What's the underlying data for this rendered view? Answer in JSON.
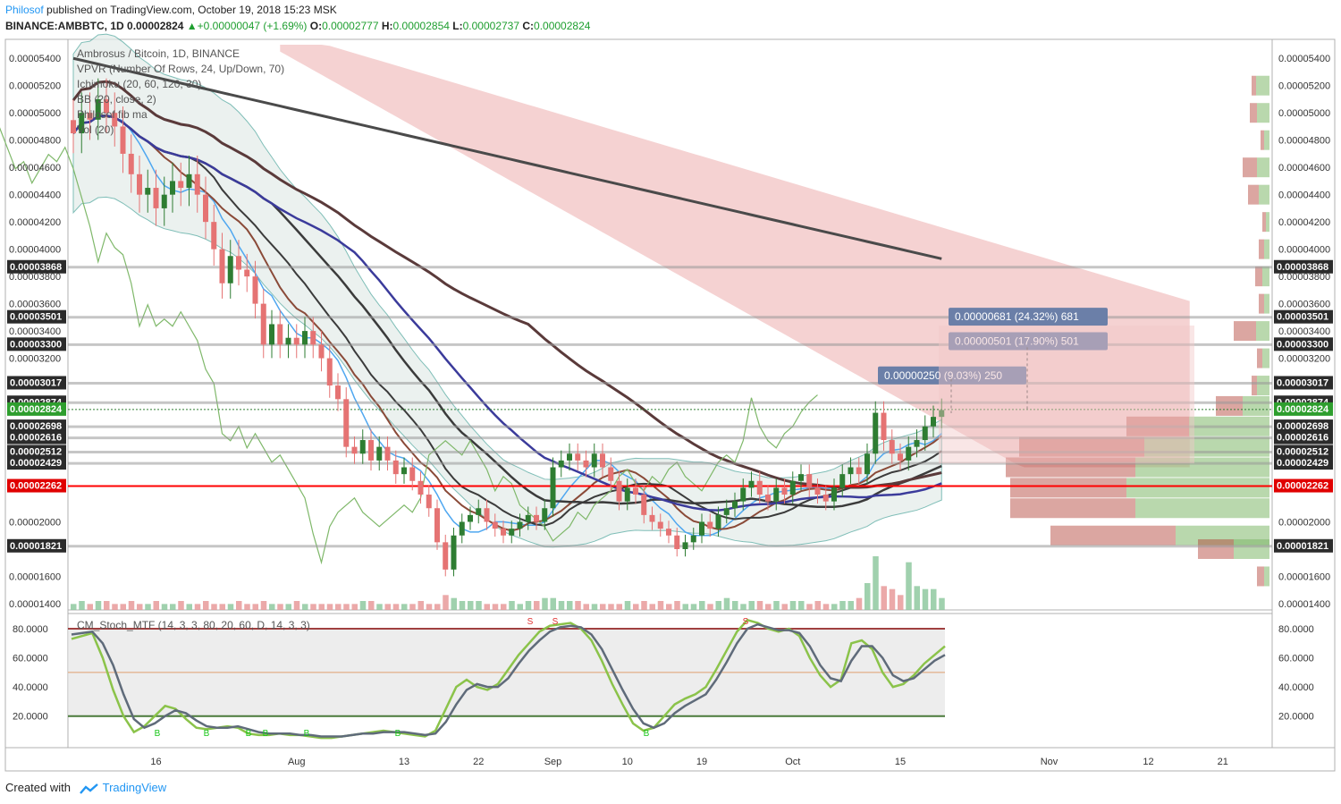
{
  "header": {
    "author": "Philosof",
    "published_text": "published on TradingView.com, October 19, 2018 15:23 MSK",
    "symbol": "BINANCE:AMBBTC, 1D",
    "last": "0.00002824",
    "change": "+0.00000047 (+1.69%)",
    "open_label": "O:",
    "open": "0.00002777",
    "high_label": "H:",
    "high": "0.00002854",
    "low_label": "L:",
    "low": "0.00002737",
    "close_label": "C:",
    "close": "0.00002824"
  },
  "legend": [
    "Ambrosus / Bitcoin, 1D, BINANCE",
    "VPVR (Number Of Rows, 24, Up/Down, 70)",
    "Ichimoku (20, 60, 120, 30)",
    "BB (20, close, 2)",
    "Philosof fib ma",
    "Vol (20)"
  ],
  "stoch_legend": "CM_Stoch_MTF (14, 3, 3, 80, 20, 60, D, 14, 3, 3)",
  "footer": {
    "created_with": "Created with",
    "brand": "TradingView"
  },
  "colors": {
    "up": "#2e7d32",
    "down": "#e57373",
    "cloud_bear": "#f2c7c7",
    "level": "#999999",
    "red_level": "#ff0000",
    "label_box": "#6b7fa8",
    "stoch_fast": "#8bc34a",
    "stoch_slow": "#5f6b7a"
  },
  "chart_data": [
    {
      "type": "line",
      "title": "Ambrosus / Bitcoin, 1D, BINANCE",
      "x_ticks": [
        "16",
        "Aug",
        "13",
        "22",
        "Sep",
        "10",
        "19",
        "Oct",
        "15",
        "Nov",
        "12",
        "21"
      ],
      "y_ticks": [
        "0.00005400",
        "0.00005200",
        "0.00005000",
        "0.00004800",
        "0.00004600",
        "0.00004400",
        "0.00004200",
        "0.00004000",
        "0.00003800",
        "0.00003600",
        "0.00003400",
        "0.00003200",
        "0.00002000",
        "0.00001600",
        "0.00001400"
      ],
      "ylim": [
        1.38e-05,
        5.5e-05
      ],
      "horizontal_levels": [
        {
          "label": "0.00003868",
          "value": 3.868e-05
        },
        {
          "label": "0.00003501",
          "value": 3.501e-05
        },
        {
          "label": "0.00003300",
          "value": 3.3e-05
        },
        {
          "label": "0.00003017",
          "value": 3.017e-05
        },
        {
          "label": "0.00002874",
          "value": 2.874e-05
        },
        {
          "label": "0.00002698",
          "value": 2.698e-05
        },
        {
          "label": "0.00002616",
          "value": 2.616e-05
        },
        {
          "label": "0.00002512",
          "value": 2.512e-05
        },
        {
          "label": "0.00002429",
          "value": 2.429e-05
        },
        {
          "label": "0.00002262",
          "value": 2.262e-05,
          "highlight": true
        },
        {
          "label": "0.00001821",
          "value": 1.821e-05
        }
      ],
      "current_price": {
        "label": "0.00002824",
        "value": 2.824e-05
      },
      "targets": [
        {
          "text": "0.00000681 (24.32%) 681",
          "value": 3.505e-05
        },
        {
          "text": "0.00000501 (17.90%) 501",
          "value": 3.325e-05
        },
        {
          "text": "0.00000250 (9.03%) 250",
          "value": 3.074e-05
        }
      ],
      "close_series": [
        4.85e-05,
        5e-05,
        4.95e-05,
        5.1e-05,
        5e-05,
        4.9e-05,
        4.7e-05,
        4.55e-05,
        4.4e-05,
        4.45e-05,
        4.3e-05,
        4.4e-05,
        4.5e-05,
        4.45e-05,
        4.55e-05,
        4.4e-05,
        4.2e-05,
        4e-05,
        3.75e-05,
        3.95e-05,
        3.85e-05,
        3.8e-05,
        3.6e-05,
        3.3e-05,
        3.45e-05,
        3.3e-05,
        3.35e-05,
        3.3e-05,
        3.4e-05,
        3.3e-05,
        3.2e-05,
        3e-05,
        2.9e-05,
        2.55e-05,
        2.5e-05,
        2.6e-05,
        2.45e-05,
        2.55e-05,
        2.45e-05,
        2.35e-05,
        2.4e-05,
        2.3e-05,
        2.2e-05,
        2.1e-05,
        1.85e-05,
        1.65e-05,
        1.9e-05,
        2e-05,
        2.05e-05,
        2.1e-05,
        2e-05,
        1.95e-05,
        1.9e-05,
        1.95e-05,
        2e-05,
        2.05e-05,
        2e-05,
        2.1e-05,
        2.4e-05,
        2.45e-05,
        2.5e-05,
        2.45e-05,
        2.4e-05,
        2.5e-05,
        2.4e-05,
        2.3e-05,
        2.15e-05,
        2.25e-05,
        2.2e-05,
        2.05e-05,
        2e-05,
        1.95e-05,
        1.9e-05,
        1.8e-05,
        1.85e-05,
        1.9e-05,
        2e-05,
        1.95e-05,
        2.05e-05,
        2.1e-05,
        2.15e-05,
        2.25e-05,
        2.3e-05,
        2.2e-05,
        2.15e-05,
        2.25e-05,
        2.2e-05,
        2.3e-05,
        2.35e-05,
        2.25e-05,
        2.2e-05,
        2.15e-05,
        2.25e-05,
        2.35e-05,
        2.4e-05,
        2.35e-05,
        2.5e-05,
        2.8e-05,
        2.6e-05,
        2.5e-05,
        2.45e-05,
        2.55e-05,
        2.6e-05,
        2.7e-05,
        2.77e-05,
        2.82e-05
      ],
      "volume_series": [
        2,
        3,
        2,
        3,
        3,
        2,
        2,
        3,
        2,
        2,
        3,
        2,
        2,
        3,
        2,
        2,
        3,
        2,
        2,
        2,
        3,
        2,
        2,
        3,
        2,
        2,
        2,
        3,
        2,
        2,
        2,
        2,
        2,
        2,
        2,
        3,
        3,
        2,
        2,
        2,
        2,
        2,
        3,
        2,
        2,
        5,
        4,
        3,
        3,
        3,
        2,
        2,
        2,
        3,
        2,
        3,
        3,
        4,
        4,
        3,
        3,
        3,
        2,
        2,
        2,
        2,
        2,
        3,
        2,
        3,
        2,
        3,
        2,
        3,
        2,
        2,
        3,
        2,
        3,
        4,
        3,
        2,
        3,
        3,
        2,
        3,
        2,
        3,
        3,
        2,
        3,
        2,
        2,
        3,
        3,
        4,
        9,
        18,
        8,
        7,
        5,
        16,
        8,
        7,
        7,
        4
      ]
    },
    {
      "type": "line",
      "title": "CM_Stoch_MTF (14, 3, 3, 80, 20, 60, D, 14, 3, 3)",
      "y_ticks": [
        "80.0000",
        "60.0000",
        "40.0000",
        "20.0000"
      ],
      "ylim": [
        2,
        88
      ],
      "bands": {
        "upper": 80,
        "mid": 50,
        "lower": 20
      },
      "series": [
        {
          "values": [
            73,
            75,
            77,
            60,
            38,
            20,
            9,
            13,
            20,
            27,
            25,
            18,
            12,
            11,
            12,
            13,
            12,
            8,
            7,
            7,
            8,
            7,
            7,
            6,
            5,
            5,
            6,
            7,
            8,
            9,
            10,
            9,
            8,
            7,
            6,
            10,
            25,
            40,
            45,
            40,
            38,
            42,
            52,
            62,
            70,
            78,
            82,
            83,
            84,
            80,
            72,
            58,
            42,
            28,
            15,
            10,
            12,
            20,
            28,
            32,
            35,
            40,
            52,
            65,
            78,
            86,
            84,
            80,
            78,
            80,
            75,
            60,
            48,
            40,
            45,
            70,
            72,
            66,
            50,
            40,
            42,
            48,
            56,
            62,
            68
          ]
        },
        {
          "values": [
            76,
            77,
            78,
            70,
            55,
            35,
            18,
            12,
            15,
            20,
            24,
            22,
            17,
            13,
            12,
            12,
            13,
            11,
            9,
            8,
            8,
            8,
            7,
            7,
            6,
            6,
            6,
            7,
            8,
            8,
            9,
            9,
            9,
            8,
            7,
            8,
            16,
            28,
            38,
            42,
            40,
            40,
            46,
            56,
            65,
            72,
            78,
            81,
            82,
            81,
            76,
            66,
            52,
            38,
            25,
            15,
            12,
            15,
            22,
            27,
            31,
            35,
            45,
            57,
            70,
            80,
            83,
            81,
            79,
            79,
            77,
            68,
            55,
            46,
            44,
            58,
            68,
            68,
            60,
            48,
            44,
            46,
            52,
            58,
            62
          ]
        }
      ],
      "markers_buy": [
        "B",
        "B",
        "B",
        "B",
        "B",
        "B",
        "B"
      ],
      "markers_sell": [
        "S",
        "S",
        "S"
      ]
    }
  ]
}
